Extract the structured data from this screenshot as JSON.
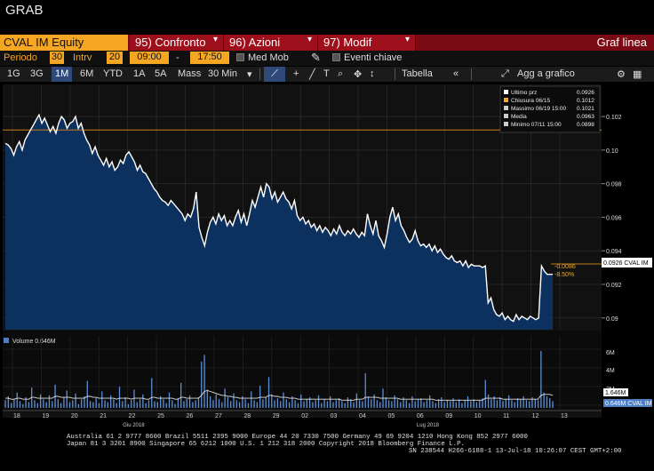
{
  "window": {
    "title": "GRAB"
  },
  "menubar": {
    "ticker": "CVAL IM Equity",
    "items": [
      {
        "label": "95) Confronto"
      },
      {
        "label": "96) Azioni"
      },
      {
        "label": "97) Modif"
      }
    ],
    "view_label": "Graf linea"
  },
  "params": {
    "period_label": "Periodo",
    "period_value": "30",
    "interval_label": "Intrv",
    "interval_value": "20",
    "time_start": "09:00",
    "time_dash": "-",
    "time_end": "17:50",
    "medmob_label": "Med Mob",
    "events_label": "Eventi chiave"
  },
  "toolbar": {
    "ranges": [
      "1G",
      "3G",
      "1M",
      "6M",
      "YTD",
      "1A",
      "5A",
      "Mass"
    ],
    "active_range": "1M",
    "granularity": "30 Min",
    "table_label": "Tabella",
    "collapse_glyph": "«",
    "add_label": "Agg a grafico"
  },
  "legend": {
    "rows": [
      {
        "label": "Ultimo prz",
        "value": "0.0926",
        "color": "#ffffff"
      },
      {
        "label": "Chiusura 06/15",
        "value": "0.1012",
        "color": "#f5a623"
      },
      {
        "label": "Massimo 06/19 15:00",
        "value": "0.1021",
        "color": "#cccccc"
      },
      {
        "label": "Media",
        "value": "0.0963",
        "color": "#cccccc"
      },
      {
        "label": "Minimo 07/11 15:00",
        "value": "0.0898",
        "color": "#cccccc"
      }
    ]
  },
  "annotations": {
    "change_abs": "-0.0086",
    "change_pct": "-8.50%",
    "last_price_tag": "0.0926 CVAL IM",
    "volume_tag_1": "1.646M",
    "volume_tag_2": "0.646M CVAL IM"
  },
  "volume_panel": {
    "label": "Volume 0.646M",
    "ticks": [
      "6M",
      "4M",
      "2M"
    ]
  },
  "footer": {
    "line1": "Australia 61 2 9777 8600  Brazil 5511 2395 9000  Europe 44 20 7330 7500  Germany 49 69 9204 1210  Hong Kong 852 2977 6000",
    "line2": "Japan 81 3 3201 8900       Singapore 65 6212 1000       U.S. 1 212 318 2000         Copyright 2018 Bloomberg Finance L.P.",
    "line3": "SN 238544 H266-6188-1 13-Jul-18 10:26:07 CEST GMT+2:00"
  },
  "colors": {
    "accent_orange": "#f5a623",
    "menu_red": "#9d0f1a",
    "area_fill": "#0f3566",
    "price_line": "#ffffff"
  },
  "chart_data": {
    "type": "area",
    "y_ticks": [
      "0.102",
      "0.10",
      "0.098",
      "0.096",
      "0.094",
      "0.092",
      "0.09"
    ],
    "ylim": [
      0.0893,
      0.1037
    ],
    "reference_line": 0.1012,
    "x_day_labels": [
      "18",
      "19",
      "20",
      "21",
      "22",
      "25",
      "26",
      "27",
      "28",
      "29",
      "02",
      "03",
      "04",
      "05",
      "06",
      "09",
      "10",
      "11",
      "12",
      "13"
    ],
    "x_month_labels": [
      {
        "label": "Giu 2018",
        "day_index": 3.8
      },
      {
        "label": "Lug 2018",
        "day_index": 14.0
      }
    ],
    "series": [
      {
        "values": [
          0.1004,
          0.1003,
          0.1001,
          0.0997,
          0.1002,
          0.1005,
          0.1,
          0.1006,
          0.1009,
          0.1012,
          0.1015,
          0.1018,
          0.1021,
          0.1016,
          0.1019,
          0.1015,
          0.1011,
          0.1014,
          0.101,
          0.1016,
          0.102,
          0.1018,
          0.1013,
          0.1016,
          0.1017,
          0.102,
          0.1013,
          0.1016,
          0.101,
          0.1006,
          0.1003,
          0.0998,
          0.1002,
          0.0997,
          0.0994,
          0.0991,
          0.0995,
          0.099,
          0.0993,
          0.0988,
          0.099,
          0.0994,
          0.0992,
          0.0997,
          0.0999,
          0.0996,
          0.0993,
          0.0988,
          0.0991,
          0.0987,
          0.0986,
          0.0983,
          0.098,
          0.0977,
          0.0975,
          0.0972,
          0.097,
          0.0969,
          0.0967,
          0.097,
          0.0968,
          0.0966,
          0.0964,
          0.0962,
          0.0958,
          0.0962,
          0.096,
          0.0965,
          0.0975,
          0.0954,
          0.0948,
          0.0943,
          0.0951,
          0.0957,
          0.096,
          0.0956,
          0.0962,
          0.0958,
          0.0961,
          0.0955,
          0.0958,
          0.0955,
          0.096,
          0.0964,
          0.0957,
          0.0962,
          0.0955,
          0.0962,
          0.097,
          0.0966,
          0.0972,
          0.0978,
          0.0972,
          0.098,
          0.0978,
          0.0971,
          0.0975,
          0.0969,
          0.0972,
          0.0975,
          0.0971,
          0.0969,
          0.0965,
          0.097,
          0.0961,
          0.0958,
          0.096,
          0.0956,
          0.0958,
          0.0954,
          0.0956,
          0.0952,
          0.0955,
          0.0951,
          0.0954,
          0.0952,
          0.0949,
          0.0953,
          0.095,
          0.0955,
          0.0951,
          0.0949,
          0.0952,
          0.095,
          0.0953,
          0.095,
          0.0948,
          0.0951,
          0.0949,
          0.0962,
          0.0955,
          0.095,
          0.0958,
          0.0949,
          0.0946,
          0.0942,
          0.095,
          0.096,
          0.0966,
          0.0958,
          0.0962,
          0.0955,
          0.0952,
          0.0948,
          0.0945,
          0.0947,
          0.0952,
          0.0946,
          0.0943,
          0.0944,
          0.0942,
          0.0944,
          0.094,
          0.0943,
          0.0939,
          0.0941,
          0.0938,
          0.0936,
          0.0935,
          0.0937,
          0.0934,
          0.0933,
          0.0934,
          0.0931,
          0.0934,
          0.093,
          0.0932,
          0.0931,
          0.0931,
          0.0931,
          0.093,
          0.0931,
          0.0909,
          0.0912,
          0.0905,
          0.0902,
          0.0901,
          0.0903,
          0.0899,
          0.0901,
          0.0899,
          0.0898,
          0.0902,
          0.0899,
          0.0901,
          0.09,
          0.0899,
          0.0901,
          0.09,
          0.0899,
          0.09,
          0.0931,
          0.0928,
          0.0926,
          0.0926,
          0.0926
        ]
      }
    ],
    "volume": {
      "ylim": [
        0,
        7
      ],
      "ticks": [
        6,
        4,
        2
      ],
      "values": [
        0.8,
        1.2,
        0.5,
        0.9,
        1.6,
        0.7,
        0.4,
        1.1,
        0.6,
        2.1,
        0.8,
        0.5,
        1.4,
        0.9,
        0.6,
        1.3,
        0.7,
        2.4,
        0.9,
        0.5,
        1.1,
        1.8,
        0.6,
        0.8,
        1.5,
        0.4,
        0.9,
        1.2,
        2.8,
        0.7,
        0.6,
        1.0,
        0.5,
        1.7,
        0.8,
        0.6,
        1.3,
        0.9,
        0.5,
        2.2,
        0.7,
        1.1,
        0.4,
        0.8,
        1.9,
        0.6,
        0.9,
        1.4,
        0.5,
        0.8,
        3.1,
        0.7,
        0.6,
        1.2,
        0.9,
        0.5,
        1.6,
        0.8,
        0.4,
        1.0,
        2.6,
        0.7,
        0.9,
        1.3,
        0.6,
        0.8,
        1.1,
        4.8,
        5.5,
        1.9,
        1.2,
        0.8,
        1.4,
        0.9,
        0.6,
        2.0,
        1.1,
        0.7,
        1.5,
        0.8,
        0.6,
        1.2,
        0.9,
        0.5,
        1.7,
        0.8,
        0.6,
        2.3,
        0.9,
        1.1,
        3.2,
        1.4,
        0.8,
        1.0,
        0.7,
        1.6,
        0.9,
        0.6,
        1.2,
        0.8,
        0.5,
        1.4,
        0.7,
        0.9,
        1.1,
        0.6,
        0.8,
        1.3,
        0.5,
        0.9,
        0.7,
        1.2,
        0.6,
        0.8,
        1.0,
        0.7,
        0.5,
        1.1,
        0.9,
        0.6,
        1.5,
        0.8,
        0.7,
        3.6,
        1.2,
        0.9,
        1.4,
        0.8,
        0.6,
        2.0,
        1.1,
        0.8,
        0.7,
        1.3,
        0.9,
        0.6,
        1.1,
        0.8,
        0.5,
        1.2,
        0.7,
        0.9,
        1.0,
        0.6,
        0.8,
        1.3,
        0.7,
        0.5,
        0.9,
        1.1,
        0.6,
        0.8,
        0.7,
        1.0,
        0.6,
        0.9,
        0.5,
        0.8,
        1.2,
        0.7,
        0.9,
        0.6,
        0.8,
        1.0,
        2.9,
        1.4,
        0.9,
        1.2,
        0.8,
        1.1,
        0.7,
        0.9,
        1.3,
        0.8,
        0.6,
        1.0,
        0.9,
        1.2,
        0.8,
        0.7,
        1.1,
        0.9,
        0.8,
        5.9,
        1.6,
        1.2,
        1.0,
        0.7
      ],
      "moving_average": [
        1.0,
        1.0,
        0.9,
        0.9,
        1.0,
        1.0,
        0.9,
        0.9,
        0.9,
        1.1,
        1.1,
        1.0,
        1.0,
        1.0,
        1.0,
        1.0,
        1.0,
        1.2,
        1.2,
        1.1,
        1.1,
        1.1,
        1.1,
        1.0,
        1.0,
        1.0,
        1.0,
        1.0,
        1.2,
        1.2,
        1.1,
        1.1,
        1.0,
        1.0,
        1.0,
        1.0,
        1.0,
        1.0,
        0.9,
        1.0,
        1.0,
        1.0,
        1.0,
        0.9,
        1.0,
        1.0,
        1.0,
        1.0,
        0.9,
        0.9,
        1.1,
        1.1,
        1.0,
        1.0,
        1.0,
        1.0,
        1.0,
        1.0,
        0.9,
        0.9,
        1.1,
        1.1,
        1.0,
        1.0,
        1.0,
        1.0,
        1.0,
        1.3,
        1.7,
        1.8,
        1.7,
        1.6,
        1.5,
        1.4,
        1.3,
        1.3,
        1.2,
        1.2,
        1.1,
        1.1,
        1.0,
        1.0,
        1.0,
        1.0,
        1.0,
        1.0,
        1.0,
        1.1,
        1.1,
        1.1,
        1.3,
        1.3,
        1.2,
        1.2,
        1.1,
        1.1,
        1.1,
        1.0,
        1.0,
        1.0,
        0.9,
        0.9,
        0.9,
        0.9,
        0.9,
        0.9,
        0.9,
        0.9,
        0.9,
        0.9,
        0.9,
        0.9,
        0.9,
        0.9,
        0.9,
        0.8,
        0.8,
        0.8,
        0.8,
        0.8,
        0.9,
        0.9,
        0.9,
        1.1,
        1.1,
        1.1,
        1.1,
        1.1,
        1.0,
        1.0,
        1.0,
        1.0,
        1.0,
        1.0,
        1.0,
        0.9,
        0.9,
        0.9,
        0.9,
        0.9,
        0.9,
        0.9,
        0.9,
        0.9,
        0.9,
        0.9,
        0.9,
        0.8,
        0.8,
        0.8,
        0.8,
        0.8,
        0.8,
        0.8,
        0.8,
        0.8,
        0.8,
        0.8,
        0.8,
        0.8,
        0.8,
        0.8,
        0.8,
        0.8,
        1.0,
        1.0,
        1.0,
        1.0,
        1.0,
        1.0,
        0.9,
        0.9,
        0.9,
        0.9,
        0.9,
        0.9,
        0.9,
        0.9,
        0.9,
        0.9,
        0.9,
        0.9,
        0.9,
        1.3,
        1.4,
        1.4,
        1.4,
        1.3
      ]
    }
  }
}
